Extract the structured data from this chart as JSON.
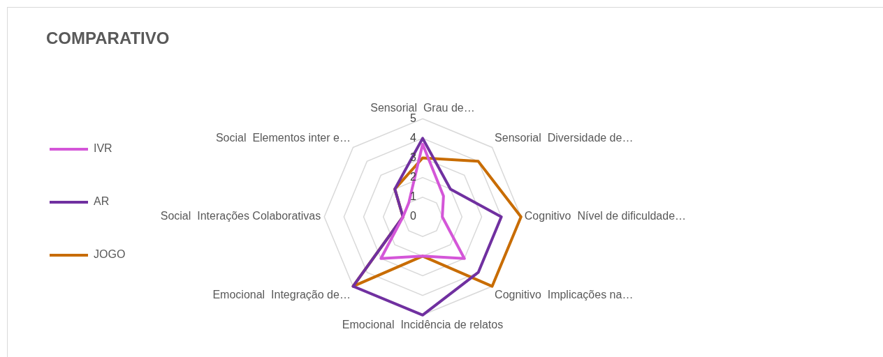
{
  "chart_data": {
    "type": "radar",
    "title": "COMPARATIVO",
    "categories": [
      "Sensorial  Grau de…",
      "Sensorial  Diversidade de…",
      "Cognitivo  Nível de dificuldade…",
      "Cognitivo  Implicações na…",
      "Emocional  Incidência de relatos",
      "Emocional  Integração de…",
      "Social  Interações Colaborativas",
      "Social  Elementos inter e…"
    ],
    "series": [
      {
        "name": "IVR",
        "color": "#d456d8",
        "values": [
          3.7,
          1.5,
          1,
          3,
          2,
          3,
          1,
          1
        ]
      },
      {
        "name": "AR",
        "color": "#7030a0",
        "values": [
          4,
          2,
          4,
          4,
          5,
          5,
          1,
          2
        ]
      },
      {
        "name": "JOGO",
        "color": "#c86c00",
        "values": [
          3,
          4,
          5,
          5,
          2,
          5,
          1,
          2
        ]
      }
    ],
    "ylim": [
      0,
      5
    ],
    "yticks": [
      0,
      1,
      2,
      3,
      4,
      5
    ],
    "grid": true,
    "legend": "left",
    "marker": "none"
  }
}
